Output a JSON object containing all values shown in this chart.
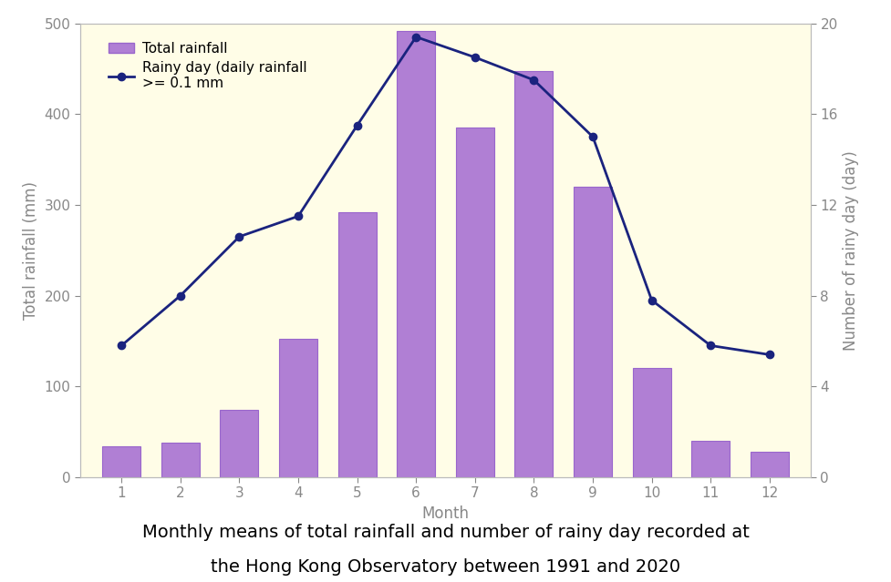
{
  "months": [
    1,
    2,
    3,
    4,
    5,
    6,
    7,
    8,
    9,
    10,
    11,
    12
  ],
  "month_labels": [
    "1",
    "2",
    "3",
    "4",
    "5",
    "6",
    "7",
    "8",
    "9",
    "10",
    "11",
    "12"
  ],
  "rainfall": [
    34,
    38,
    74,
    152,
    292,
    492,
    385,
    447,
    320,
    120,
    40,
    28
  ],
  "rainy_days": [
    5.8,
    8.0,
    10.6,
    11.5,
    15.5,
    19.4,
    18.5,
    17.5,
    15.0,
    7.8,
    5.8,
    5.4
  ],
  "bar_color": "#b07fd4",
  "bar_edgecolor": "#9966cc",
  "line_color": "#1a237e",
  "marker_color": "#1a237e",
  "bg_color": "#fffde7",
  "ylabel_left": "Total rainfall (mm)",
  "ylabel_right": "Number of rainy day (day)",
  "xlabel": "Month",
  "title_line1": "Monthly means of total rainfall and number of rainy day recorded at",
  "title_line2": "the Hong Kong Observatory between 1991 and 2020",
  "legend_bar": "Total rainfall",
  "legend_line1": "Rainy day (daily rainfall",
  "legend_line2": ">= 0.1 mm",
  "ylim_left": [
    0,
    500
  ],
  "ylim_right": [
    0,
    20
  ],
  "yticks_left": [
    0,
    100,
    200,
    300,
    400,
    500
  ],
  "yticks_right": [
    0,
    4,
    8,
    12,
    16,
    20
  ],
  "title_fontsize": 14,
  "axis_label_fontsize": 12,
  "tick_fontsize": 11,
  "legend_fontsize": 11
}
